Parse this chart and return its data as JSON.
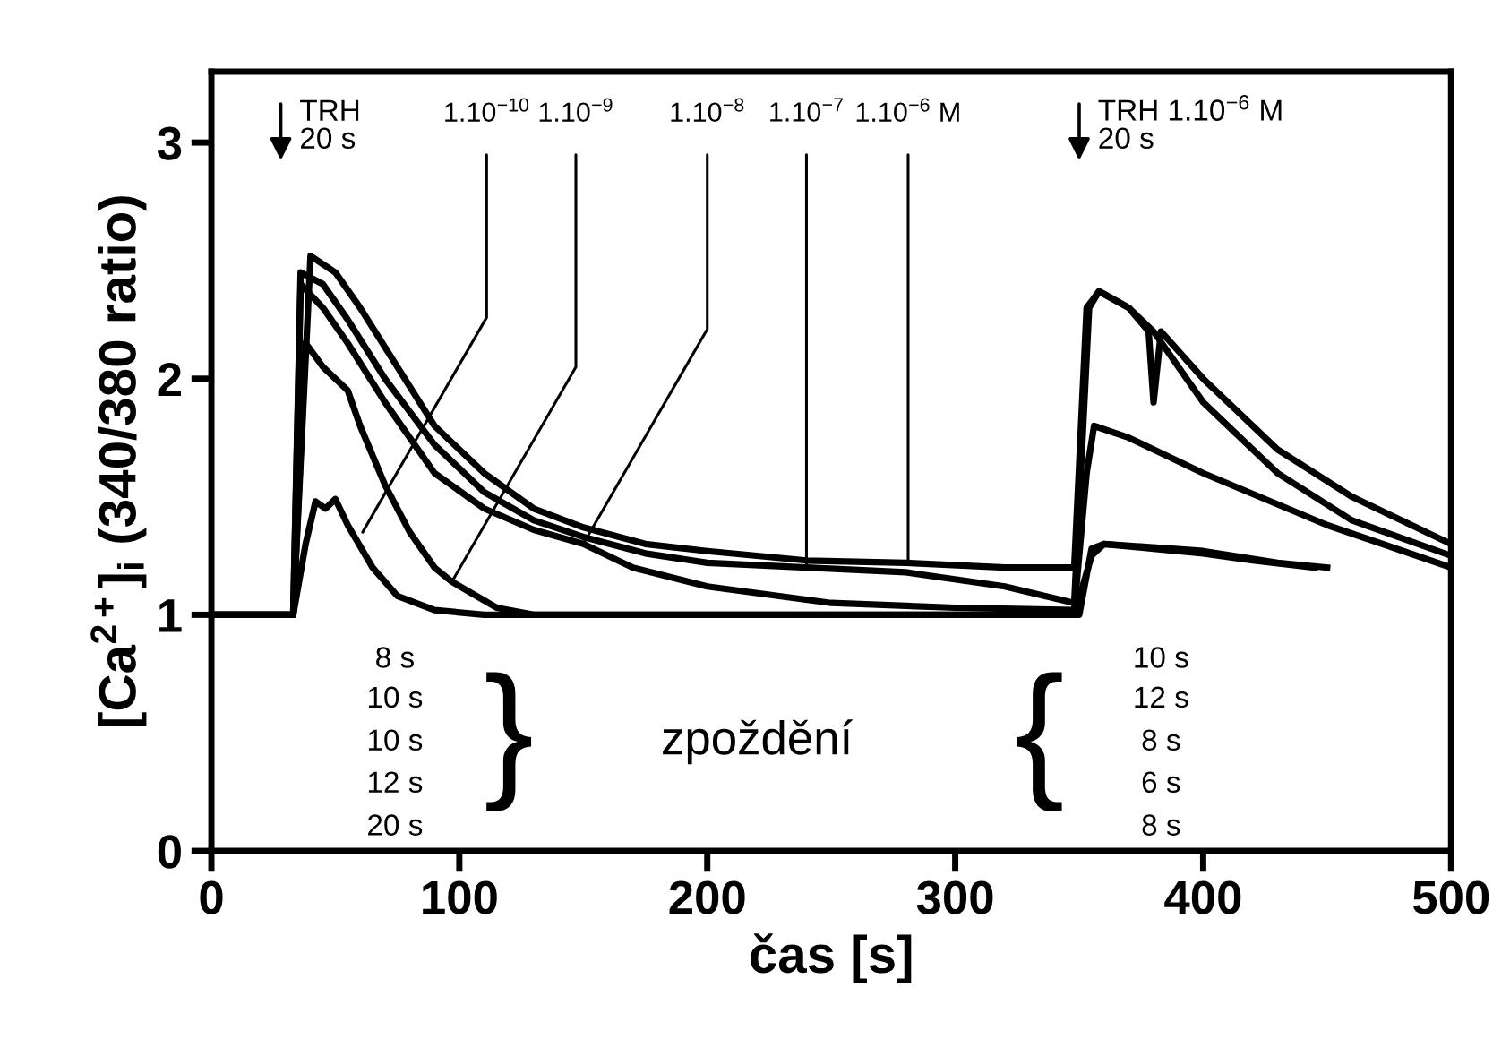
{
  "chart_data": {
    "type": "line",
    "xlabel": "čas [s]",
    "ylabel": "[Ca$^{2+}$]$_{i}$ (340/380 ratio)",
    "xlim": [
      0,
      500
    ],
    "xticks": [
      0,
      100,
      200,
      300,
      400,
      500
    ],
    "ylim": [
      0,
      3.3
    ],
    "yticks": [
      0,
      1,
      2,
      3
    ],
    "grid": false,
    "legend": false,
    "marker": "none",
    "line_style": "solid",
    "series": [
      {
        "color": "#000000",
        "x": [
          0,
          15,
          30,
          33,
          38,
          42,
          46,
          50,
          55,
          65,
          75,
          90,
          110,
          150,
          200,
          250,
          300,
          345,
          350,
          355,
          360,
          380,
          400,
          420,
          445
        ],
        "values": [
          1.0,
          1.0,
          1.0,
          1.0,
          1.3,
          1.48,
          1.45,
          1.49,
          1.38,
          1.2,
          1.08,
          1.02,
          1.0,
          1.0,
          1.0,
          1.0,
          1.0,
          1.0,
          1.0,
          1.28,
          1.3,
          1.28,
          1.26,
          1.23,
          1.2
        ]
      },
      {
        "color": "#000000",
        "x": [
          0,
          15,
          30,
          33,
          38,
          45,
          50,
          55,
          60,
          70,
          80,
          90,
          97,
          115,
          130,
          200,
          250,
          300,
          348,
          355,
          360,
          400,
          430,
          450
        ],
        "values": [
          1.0,
          1.0,
          1.0,
          1.0,
          2.15,
          2.05,
          2.0,
          1.95,
          1.8,
          1.55,
          1.35,
          1.2,
          1.14,
          1.03,
          1.0,
          1.0,
          1.0,
          1.0,
          1.0,
          1.25,
          1.3,
          1.27,
          1.22,
          1.2
        ]
      },
      {
        "color": "#000000",
        "x": [
          0,
          15,
          30,
          33,
          36,
          45,
          55,
          70,
          90,
          110,
          130,
          150,
          170,
          200,
          250,
          300,
          348,
          353,
          356,
          370,
          400,
          450,
          500
        ],
        "values": [
          1.0,
          1.0,
          1.0,
          1.0,
          2.4,
          2.3,
          2.15,
          1.9,
          1.6,
          1.45,
          1.36,
          1.3,
          1.2,
          1.12,
          1.05,
          1.03,
          1.02,
          1.6,
          1.8,
          1.75,
          1.6,
          1.38,
          1.2
        ]
      },
      {
        "color": "#000000",
        "x": [
          0,
          15,
          30,
          33,
          36,
          45,
          55,
          70,
          90,
          110,
          130,
          150,
          175,
          200,
          240,
          280,
          320,
          348,
          354,
          358,
          370,
          380,
          400,
          430,
          460,
          500
        ],
        "values": [
          1.0,
          1.0,
          1.0,
          1.0,
          2.45,
          2.4,
          2.25,
          2.0,
          1.72,
          1.52,
          1.4,
          1.33,
          1.26,
          1.22,
          1.2,
          1.18,
          1.12,
          1.05,
          2.3,
          2.37,
          2.3,
          2.2,
          1.9,
          1.6,
          1.4,
          1.25
        ]
      },
      {
        "color": "#000000",
        "x": [
          0,
          15,
          30,
          33,
          40,
          50,
          60,
          75,
          90,
          110,
          130,
          150,
          175,
          200,
          240,
          280,
          320,
          348,
          353,
          358,
          370,
          378,
          380,
          383,
          400,
          430,
          460,
          500
        ],
        "values": [
          1.0,
          1.0,
          1.0,
          1.0,
          2.52,
          2.45,
          2.3,
          2.05,
          1.8,
          1.6,
          1.45,
          1.37,
          1.3,
          1.27,
          1.23,
          1.22,
          1.2,
          1.2,
          2.3,
          2.37,
          2.3,
          2.2,
          1.9,
          2.2,
          2.0,
          1.7,
          1.5,
          1.3
        ]
      }
    ],
    "annotations": [
      "TRH\n20 s",
      "TRH 1.10$^{−6}$ M\n20 s",
      {
        "text": "1.10$^{−10}$",
        "x": 61,
        "y": 1.35
      },
      {
        "text": "1.10$^{−9}$",
        "x": 97,
        "y": 1.14
      },
      {
        "text": "1.10$^{−8}$",
        "x": 150,
        "y": 1.3
      },
      {
        "text": "1.10$^{−7}$",
        "x": 240,
        "y": 1.2
      },
      {
        "text": "1.10$^{−6}$ M",
        "x": 281,
        "y": 1.22
      },
      "8 s",
      "10 s",
      "10 s",
      "12 s",
      "20 s",
      "}",
      "zpoždění",
      "{",
      "10 s",
      "12 s",
      "8 s",
      "6 s",
      "8 s"
    ]
  }
}
